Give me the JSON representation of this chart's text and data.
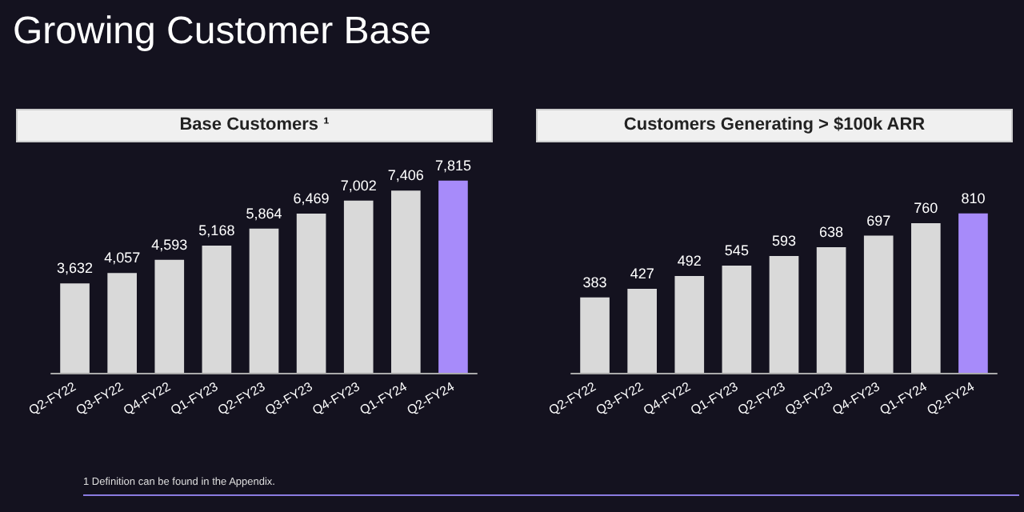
{
  "chart_data": [
    {
      "type": "bar",
      "title": "Base Customers ¹",
      "annotations": [
        "Growing Customer Base",
        "1 Definition can be found in the Appendix."
      ],
      "categories": [
        "Q2-FY22",
        "Q3-FY22",
        "Q4-FY22",
        "Q1-FY23",
        "Q2-FY23",
        "Q3-FY23",
        "Q4-FY23",
        "Q1-FY24",
        "Q2-FY24"
      ],
      "values": [
        3632,
        4057,
        4593,
        5168,
        5864,
        6469,
        7002,
        7406,
        7815
      ],
      "value_labels": [
        "3,632",
        "4,057",
        "4,593",
        "5,168",
        "5,864",
        "6,469",
        "7,002",
        "7,406",
        "7,815"
      ],
      "colors": [
        "#d9d9d9",
        "#d9d9d9",
        "#d9d9d9",
        "#d9d9d9",
        "#d9d9d9",
        "#d9d9d9",
        "#d9d9d9",
        "#d9d9d9",
        "#a78bfa"
      ]
    },
    {
      "type": "bar",
      "title": "Customers Generating > $100k ARR",
      "categories": [
        "Q2-FY22",
        "Q3-FY22",
        "Q4-FY22",
        "Q1-FY23",
        "Q2-FY23",
        "Q3-FY23",
        "Q4-FY23",
        "Q1-FY24",
        "Q2-FY24"
      ],
      "values": [
        383,
        427,
        492,
        545,
        593,
        638,
        697,
        760,
        810
      ],
      "data_labels": true,
      "colors": [
        "#d9d9d9",
        "#d9d9d9",
        "#d9d9d9",
        "#d9d9d9",
        "#d9d9d9",
        "#d9d9d9",
        "#d9d9d9",
        "#d9d9d9",
        "#a78bfa"
      ]
    }
  ]
}
